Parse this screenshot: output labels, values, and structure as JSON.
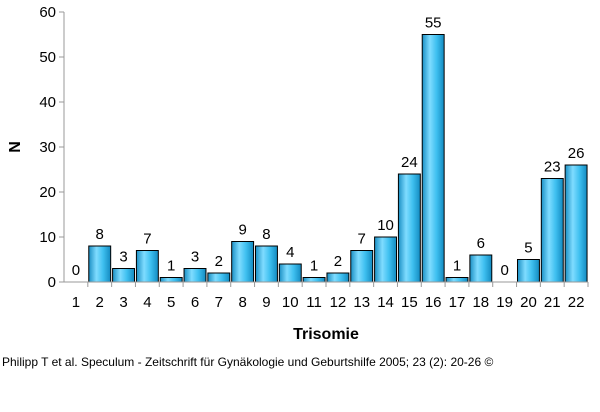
{
  "chart_data": {
    "type": "bar",
    "title": "",
    "xlabel": "Trisomie",
    "ylabel": "N",
    "ylim": [
      0,
      60
    ],
    "yticks": [
      0,
      10,
      20,
      30,
      40,
      50,
      60
    ],
    "grid": false,
    "bar_color": "#2fb6e8",
    "categories": [
      "1",
      "2",
      "3",
      "4",
      "5",
      "6",
      "7",
      "8",
      "9",
      "10",
      "11",
      "12",
      "13",
      "14",
      "15",
      "16",
      "17",
      "18",
      "19",
      "20",
      "21",
      "22"
    ],
    "values": [
      0,
      8,
      3,
      7,
      1,
      3,
      2,
      9,
      8,
      4,
      1,
      2,
      7,
      10,
      24,
      55,
      1,
      6,
      0,
      5,
      23,
      26
    ]
  },
  "caption": "Philipp T et al. Speculum - Zeitschrift für Gynäkologie und Geburtshilfe 2005; 23 (2): 20-26 ©"
}
